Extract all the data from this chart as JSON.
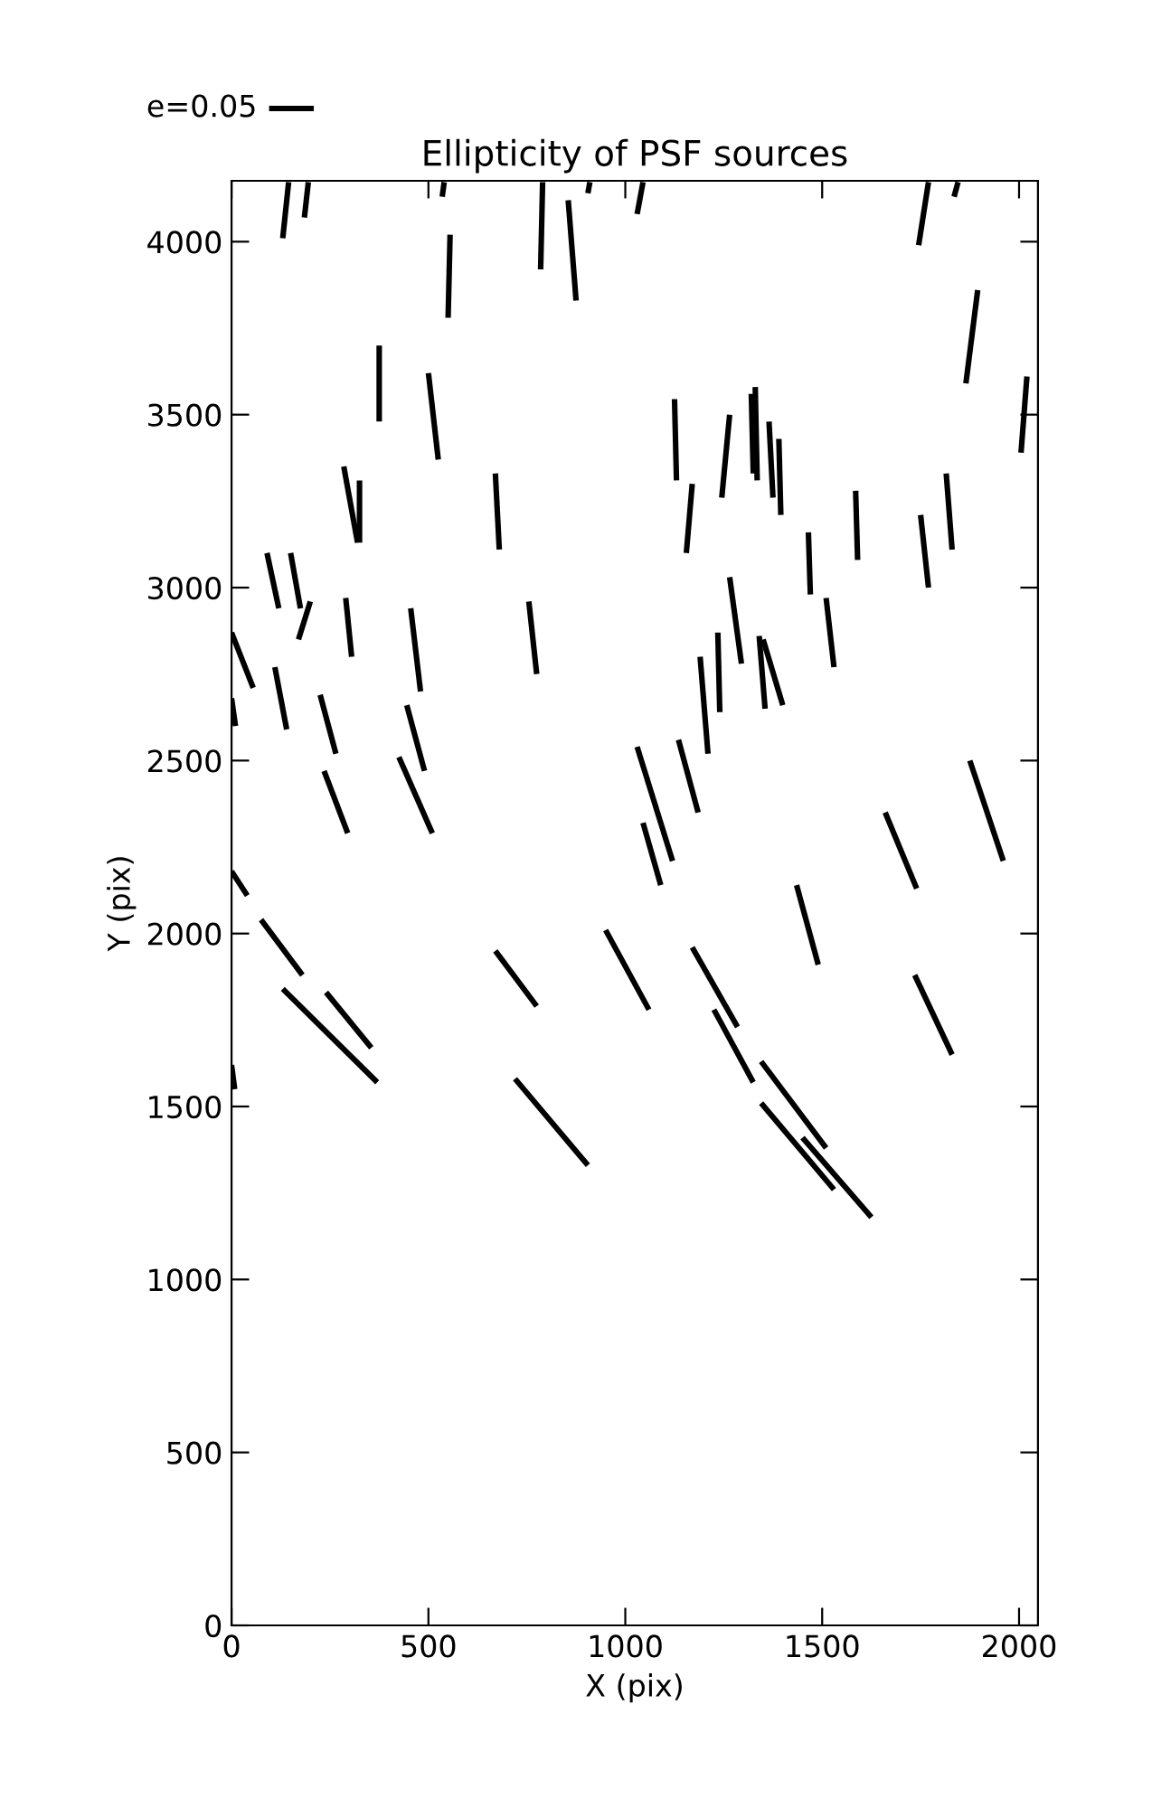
{
  "chart_data": {
    "type": "line",
    "title": "Ellipticity of PSF sources",
    "xlabel": "X (pix)",
    "ylabel": "Y (pix)",
    "xlim": [
      0,
      2048
    ],
    "ylim": [
      0,
      4176
    ],
    "xticks": [
      0,
      500,
      1000,
      1500,
      2000
    ],
    "yticks": [
      0,
      500,
      1000,
      1500,
      2000,
      2500,
      3000,
      3500,
      4000
    ],
    "grid": false,
    "legend": false,
    "marker": "none",
    "line_style": "solid",
    "annotations": [
      "e=0.05"
    ],
    "series": [
      {
        "color": "#000000",
        "x": [
          130,
          145
        ],
        "values": [
          4010,
          4172
        ]
      },
      {
        "color": "#000000",
        "x": [
          185,
          195
        ],
        "values": [
          4070,
          4172
        ]
      },
      {
        "color": "#000000",
        "x": [
          535,
          540
        ],
        "values": [
          4130,
          4172
        ]
      },
      {
        "color": "#000000",
        "x": [
          785,
          790
        ],
        "values": [
          3920,
          4172
        ]
      },
      {
        "color": "#000000",
        "x": [
          855,
          875
        ],
        "values": [
          4120,
          3830
        ]
      },
      {
        "color": "#000000",
        "x": [
          905,
          910
        ],
        "values": [
          4140,
          4172
        ]
      },
      {
        "color": "#000000",
        "x": [
          1030,
          1045
        ],
        "values": [
          4080,
          4172
        ]
      },
      {
        "color": "#000000",
        "x": [
          1745,
          1770
        ],
        "values": [
          3990,
          4172
        ]
      },
      {
        "color": "#000000",
        "x": [
          1835,
          1845
        ],
        "values": [
          4130,
          4172
        ]
      },
      {
        "color": "#000000",
        "x": [
          555,
          550
        ],
        "values": [
          4020,
          3780
        ]
      },
      {
        "color": "#000000",
        "x": [
          375,
          375
        ],
        "values": [
          3700,
          3480
        ]
      },
      {
        "color": "#000000",
        "x": [
          500,
          525
        ],
        "values": [
          3620,
          3370
        ]
      },
      {
        "color": "#000000",
        "x": [
          1865,
          1895
        ],
        "values": [
          3590,
          3860
        ]
      },
      {
        "color": "#000000",
        "x": [
          2005,
          2020
        ],
        "values": [
          3390,
          3610
        ]
      },
      {
        "color": "#000000",
        "x": [
          1125,
          1130
        ],
        "values": [
          3545,
          3310
        ]
      },
      {
        "color": "#000000",
        "x": [
          1320,
          1325
        ],
        "values": [
          3560,
          3330
        ]
      },
      {
        "color": "#000000",
        "x": [
          1330,
          1335
        ],
        "values": [
          3580,
          3310
        ]
      },
      {
        "color": "#000000",
        "x": [
          1365,
          1375
        ],
        "values": [
          3480,
          3260
        ]
      },
      {
        "color": "#000000",
        "x": [
          1390,
          1395
        ],
        "values": [
          3430,
          3210
        ]
      },
      {
        "color": "#000000",
        "x": [
          1245,
          1265
        ],
        "values": [
          3260,
          3500
        ]
      },
      {
        "color": "#000000",
        "x": [
          1155,
          1170
        ],
        "values": [
          3100,
          3300
        ]
      },
      {
        "color": "#000000",
        "x": [
          285,
          320
        ],
        "values": [
          3350,
          3130
        ]
      },
      {
        "color": "#000000",
        "x": [
          325,
          325
        ],
        "values": [
          3310,
          3130
        ]
      },
      {
        "color": "#000000",
        "x": [
          670,
          680
        ],
        "values": [
          3330,
          3110
        ]
      },
      {
        "color": "#000000",
        "x": [
          90,
          120
        ],
        "values": [
          3100,
          2940
        ]
      },
      {
        "color": "#000000",
        "x": [
          150,
          175
        ],
        "values": [
          3100,
          2940
        ]
      },
      {
        "color": "#000000",
        "x": [
          170,
          200
        ],
        "values": [
          2850,
          2960
        ]
      },
      {
        "color": "#000000",
        "x": [
          290,
          305
        ],
        "values": [
          2970,
          2800
        ]
      },
      {
        "color": "#000000",
        "x": [
          0,
          55
        ],
        "values": [
          2870,
          2710
        ]
      },
      {
        "color": "#000000",
        "x": [
          0,
          10
        ],
        "values": [
          2680,
          2600
        ]
      },
      {
        "color": "#000000",
        "x": [
          110,
          140
        ],
        "values": [
          2770,
          2590
        ]
      },
      {
        "color": "#000000",
        "x": [
          455,
          480
        ],
        "values": [
          2940,
          2700
        ]
      },
      {
        "color": "#000000",
        "x": [
          755,
          775
        ],
        "values": [
          2960,
          2750
        ]
      },
      {
        "color": "#000000",
        "x": [
          1465,
          1470
        ],
        "values": [
          3160,
          2980
        ]
      },
      {
        "color": "#000000",
        "x": [
          1585,
          1590
        ],
        "values": [
          3280,
          3080
        ]
      },
      {
        "color": "#000000",
        "x": [
          1750,
          1770
        ],
        "values": [
          3210,
          3000
        ]
      },
      {
        "color": "#000000",
        "x": [
          1815,
          1830
        ],
        "values": [
          3330,
          3110
        ]
      },
      {
        "color": "#000000",
        "x": [
          1265,
          1295
        ],
        "values": [
          3030,
          2780
        ]
      },
      {
        "color": "#000000",
        "x": [
          1190,
          1210
        ],
        "values": [
          2800,
          2520
        ]
      },
      {
        "color": "#000000",
        "x": [
          1235,
          1240
        ],
        "values": [
          2870,
          2640
        ]
      },
      {
        "color": "#000000",
        "x": [
          1350,
          1400
        ],
        "values": [
          2850,
          2660
        ]
      },
      {
        "color": "#000000",
        "x": [
          1340,
          1355
        ],
        "values": [
          2860,
          2650
        ]
      },
      {
        "color": "#000000",
        "x": [
          1510,
          1530
        ],
        "values": [
          2970,
          2770
        ]
      },
      {
        "color": "#000000",
        "x": [
          225,
          265
        ],
        "values": [
          2690,
          2520
        ]
      },
      {
        "color": "#000000",
        "x": [
          445,
          490
        ],
        "values": [
          2660,
          2470
        ]
      },
      {
        "color": "#000000",
        "x": [
          235,
          295
        ],
        "values": [
          2470,
          2290
        ]
      },
      {
        "color": "#000000",
        "x": [
          425,
          510
        ],
        "values": [
          2510,
          2290
        ]
      },
      {
        "color": "#000000",
        "x": [
          1030,
          1120
        ],
        "values": [
          2540,
          2210
        ]
      },
      {
        "color": "#000000",
        "x": [
          1135,
          1185
        ],
        "values": [
          2560,
          2350
        ]
      },
      {
        "color": "#000000",
        "x": [
          1045,
          1090
        ],
        "values": [
          2320,
          2140
        ]
      },
      {
        "color": "#000000",
        "x": [
          1435,
          1490
        ],
        "values": [
          2140,
          1910
        ]
      },
      {
        "color": "#000000",
        "x": [
          1660,
          1740
        ],
        "values": [
          2350,
          2130
        ]
      },
      {
        "color": "#000000",
        "x": [
          1875,
          1960
        ],
        "values": [
          2500,
          2210
        ]
      },
      {
        "color": "#000000",
        "x": [
          0,
          40
        ],
        "values": [
          2180,
          2110
        ]
      },
      {
        "color": "#000000",
        "x": [
          75,
          180
        ],
        "values": [
          2040,
          1880
        ]
      },
      {
        "color": "#000000",
        "x": [
          240,
          355
        ],
        "values": [
          1830,
          1670
        ]
      },
      {
        "color": "#000000",
        "x": [
          130,
          370
        ],
        "values": [
          1840,
          1570
        ]
      },
      {
        "color": "#000000",
        "x": [
          670,
          775
        ],
        "values": [
          1950,
          1790
        ]
      },
      {
        "color": "#000000",
        "x": [
          950,
          1060
        ],
        "values": [
          2010,
          1780
        ]
      },
      {
        "color": "#000000",
        "x": [
          1170,
          1285
        ],
        "values": [
          1960,
          1730
        ]
      },
      {
        "color": "#000000",
        "x": [
          1225,
          1325
        ],
        "values": [
          1780,
          1570
        ]
      },
      {
        "color": "#000000",
        "x": [
          1345,
          1510
        ],
        "values": [
          1630,
          1380
        ]
      },
      {
        "color": "#000000",
        "x": [
          1345,
          1530
        ],
        "values": [
          1510,
          1260
        ]
      },
      {
        "color": "#000000",
        "x": [
          1450,
          1625
        ],
        "values": [
          1410,
          1180
        ]
      },
      {
        "color": "#000000",
        "x": [
          1735,
          1830
        ],
        "values": [
          1880,
          1650
        ]
      },
      {
        "color": "#000000",
        "x": [
          720,
          905
        ],
        "values": [
          1580,
          1330
        ]
      },
      {
        "color": "#000000",
        "x": [
          0,
          8
        ],
        "values": [
          1620,
          1550
        ]
      }
    ]
  }
}
